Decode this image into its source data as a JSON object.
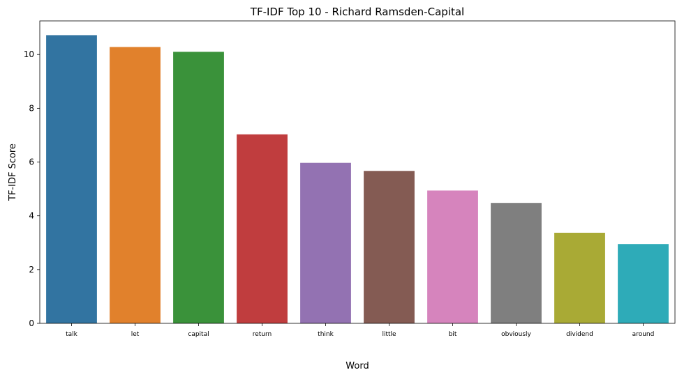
{
  "chart_data": {
    "type": "bar",
    "title": "TF-IDF Top 10 - Richard Ramsden-Capital",
    "xlabel": "Word",
    "ylabel": "TF-IDF Score",
    "categories": [
      "talk",
      "let",
      "capital",
      "return",
      "think",
      "little",
      "bit",
      "obviously",
      "dividend",
      "around"
    ],
    "values": [
      10.72,
      10.28,
      10.1,
      7.03,
      5.97,
      5.67,
      4.94,
      4.48,
      3.37,
      2.95
    ],
    "colors": [
      "#3274a1",
      "#e1812c",
      "#3a923a",
      "#c03d3e",
      "#9372b2",
      "#845b53",
      "#d684bd",
      "#7f7f7f",
      "#a9aa35",
      "#2eabb8"
    ],
    "ylim": [
      0,
      11.25
    ],
    "yticks": [
      0,
      2,
      4,
      6,
      8,
      10
    ],
    "grid": false,
    "legend": "none"
  }
}
